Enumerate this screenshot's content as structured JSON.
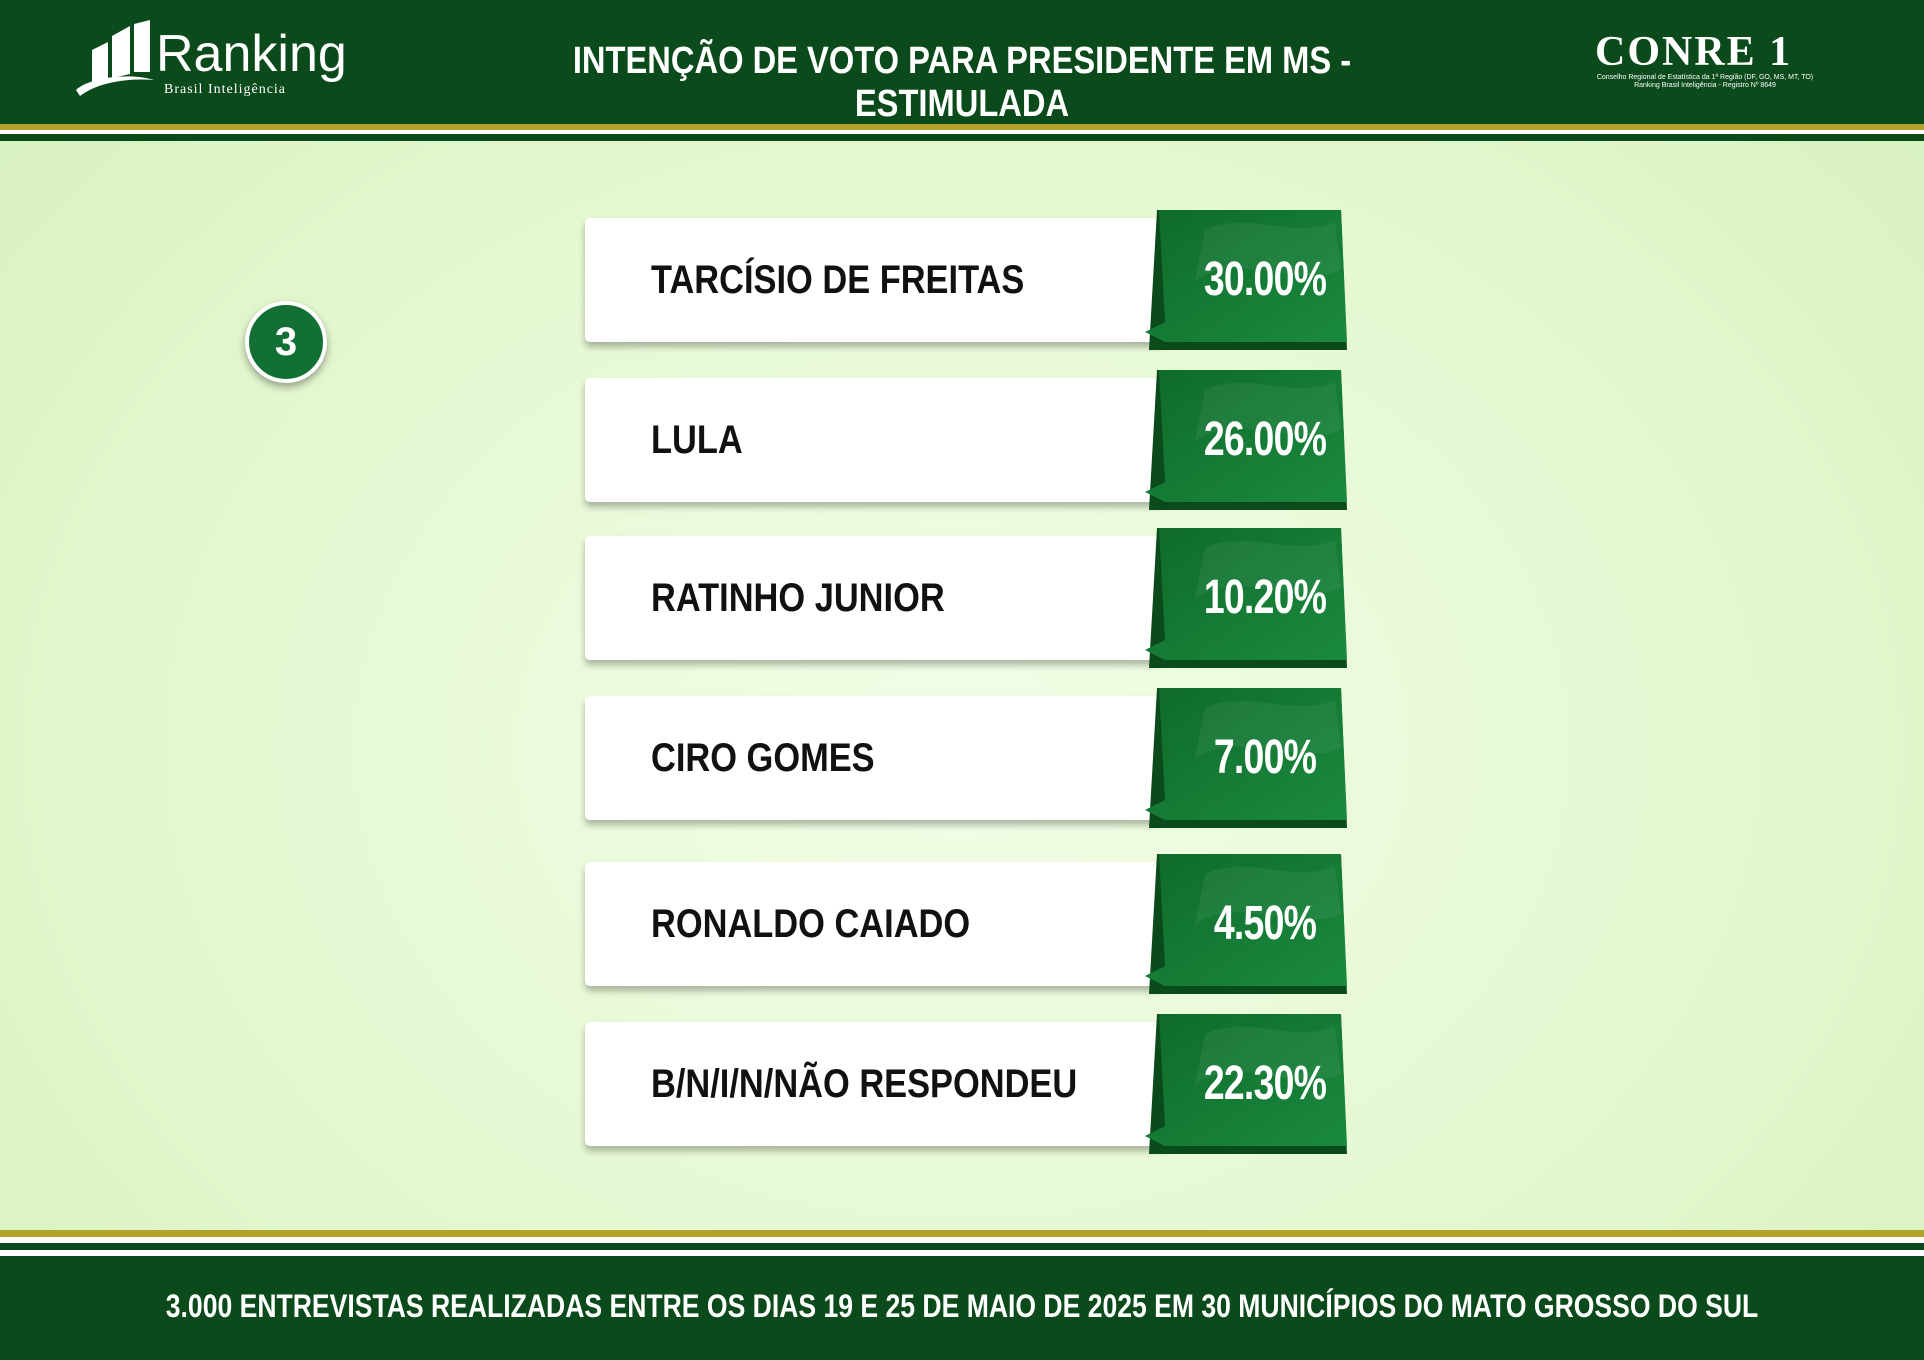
{
  "header": {
    "logo_word": "Ranking",
    "logo_sub": "Brasil Inteligência",
    "title": "INTENÇÃO DE VOTO PARA PRESIDENTE EM MS - ESTIMULADA",
    "conre_word": "CONRE 1",
    "conre_sub1": "Conselho Regional de Estatística da 1ª Região (DF, GO, MS, MT, TO)",
    "conre_sub2": "Ranking Brasil Inteligência - Registro Nº 8649"
  },
  "badge": "3",
  "colors": {
    "header_bg": "#0b4a1a",
    "gold": "#b5a22a",
    "value_green": "#137a34"
  },
  "chart_data": {
    "type": "table",
    "title": "INTENÇÃO DE VOTO PARA PRESIDENTE EM MS - ESTIMULADA",
    "categories": [
      "TARCÍSIO DE FREITAS",
      "LULA",
      "RATINHO JUNIOR",
      "CIRO GOMES",
      "RONALDO CAIADO",
      "B/N/I/N/NÃO RESPONDEU"
    ],
    "values": [
      30.0,
      26.0,
      10.2,
      7.0,
      4.5,
      22.3
    ],
    "value_labels": [
      "30.00%",
      "26.00%",
      "10.20%",
      "7.00%",
      "4.50%",
      "22.30%"
    ],
    "unit": "%"
  },
  "footer": {
    "text": "3.000 ENTREVISTAS REALIZADAS ENTRE OS DIAS 19 E 25 DE MAIO DE 2025 EM 30 MUNICÍPIOS DO MATO GROSSO DO SUL"
  }
}
